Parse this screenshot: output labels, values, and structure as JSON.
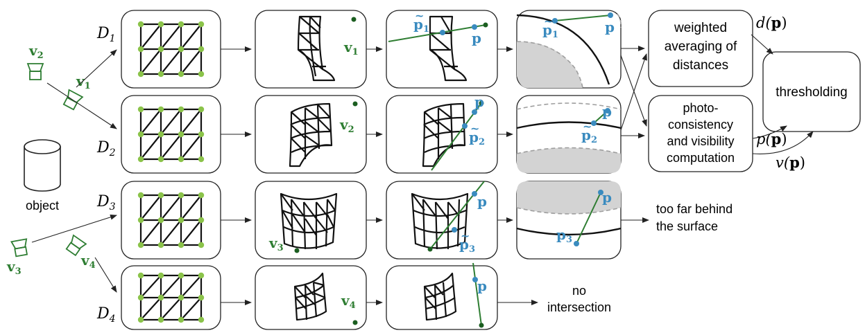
{
  "rows": [
    {
      "depth": "D",
      "sub": "1",
      "camera": "v",
      "camsub": "1",
      "proj": "p",
      "projsub": "1"
    },
    {
      "depth": "D",
      "sub": "2",
      "camera": "v",
      "camsub": "2",
      "proj": "p",
      "projsub": "2"
    },
    {
      "depth": "D",
      "sub": "3",
      "camera": "v",
      "camsub": "3",
      "proj": "p",
      "projsub": "3"
    },
    {
      "depth": "D",
      "sub": "4",
      "camera": "v",
      "camsub": "4"
    }
  ],
  "point_label": "p",
  "tilde": "~",
  "object_label": "object",
  "steps": {
    "weighted_line1": "weighted",
    "weighted_line2": "averaging of",
    "weighted_line3": "distances",
    "photo_line1": "photo-",
    "photo_line2": "consistency",
    "photo_line3": "and visibility",
    "photo_line4": "computation",
    "thresholding": "thresholding"
  },
  "functions": {
    "d": "d(",
    "p": "p(",
    "v": "v(",
    "close": ")"
  },
  "outcomes": {
    "behind_line1": "too far behind",
    "behind_line2": "the surface",
    "none_line1": "no",
    "none_line2": "intersection"
  },
  "colors": {
    "camera": "#2e7d32",
    "point": "#3a8bbf",
    "vertex": "#8bc34a",
    "occluded": "#d3d3d3"
  }
}
